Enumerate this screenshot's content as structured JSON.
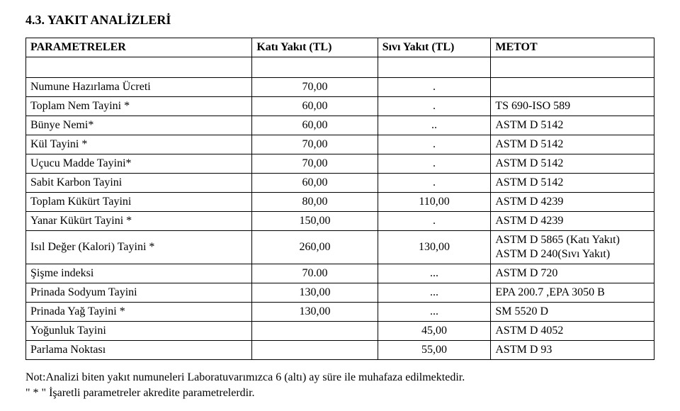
{
  "title": "4.3. YAKIT ANALİZLERİ",
  "headers": {
    "param": "PARAMETRELER",
    "kati": "Katı Yakıt (TL)",
    "sivi": "Sıvı Yakıt (TL)",
    "metot": "METOT"
  },
  "rows": [
    {
      "param": "Numune Hazırlama Ücreti",
      "kati": "70,00",
      "sivi": ".",
      "metot": ""
    },
    {
      "param": "Toplam Nem Tayini *",
      "kati": "60,00",
      "sivi": ".",
      "metot": "TS 690-ISO 589"
    },
    {
      "param": "Bünye Nemi*",
      "kati": "60,00",
      "sivi": "..",
      "metot": "ASTM D 5142"
    },
    {
      "param": "Kül Tayini *",
      "kati": "70,00",
      "sivi": ".",
      "metot": "ASTM D 5142"
    },
    {
      "param": "Uçucu Madde Tayini*",
      "kati": "70,00",
      "sivi": ".",
      "metot": "ASTM D 5142"
    },
    {
      "param": "Sabit Karbon Tayini",
      "kati": "60,00",
      "sivi": ".",
      "metot": "ASTM D 5142"
    },
    {
      "param": "Toplam Kükürt Tayini",
      "kati": "80,00",
      "sivi": "110,00",
      "metot": "ASTM D 4239"
    },
    {
      "param": "Yanar Kükürt Tayini *",
      "kati": "150,00",
      "sivi": ".",
      "metot": "ASTM D 4239"
    },
    {
      "param": "Isıl Değer (Kalori) Tayini *",
      "kati": "260,00",
      "sivi": "130,00",
      "metot": "ASTM D 5865 (Katı Yakıt)\nASTM D 240(Sıvı Yakıt)"
    },
    {
      "param": "Şişme indeksi",
      "kati": "70.00",
      "sivi": "...",
      "metot": "ASTM D 720"
    },
    {
      "param": "Prinada Sodyum Tayini",
      "kati": "130,00",
      "sivi": "...",
      "metot": "EPA 200.7 ,EPA 3050 B"
    },
    {
      "param": "Prinada Yağ Tayini *",
      "kati": "130,00",
      "sivi": "...",
      "metot": "SM 5520 D"
    },
    {
      "param": "Yoğunluk Tayini",
      "kati": "",
      "sivi": "45,00",
      "metot": "ASTM D 4052"
    },
    {
      "param": "Parlama Noktası",
      "kati": "",
      "sivi": "55,00",
      "metot": "ASTM D 93"
    }
  ],
  "footnote": {
    "line1": "Not:Analizi biten yakıt numuneleri Laboratuvarımızca 6 (altı) ay süre ile muhafaza edilmektedir.",
    "line2": "\" * \" İşaretli parametreler akredite parametrelerdir."
  },
  "style": {
    "background_color": "#ffffff",
    "text_color": "#000000",
    "border_color": "#000000",
    "font_family": "Times New Roman",
    "title_fontsize_pt": 14,
    "body_fontsize_pt": 12
  }
}
